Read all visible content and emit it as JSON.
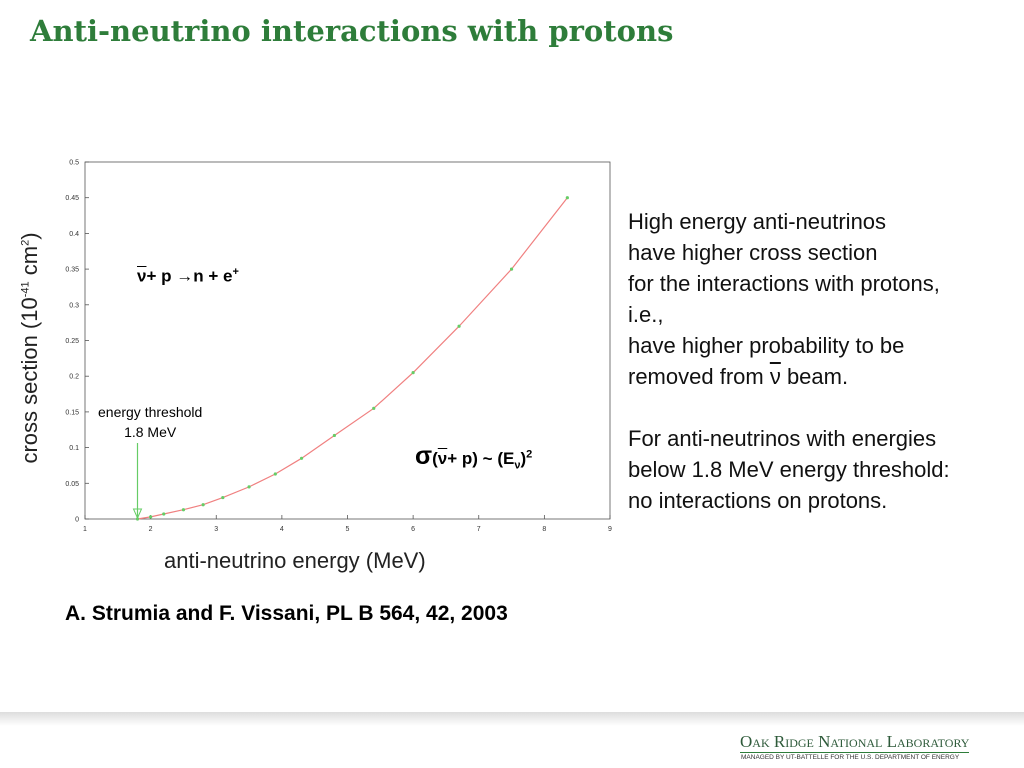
{
  "title": "Anti-neutrino interactions with protons",
  "chart_data": {
    "type": "line",
    "xlabel": "anti-neutrino energy (MeV)",
    "ylabel": {
      "before": "cross section (10",
      "sup1": "-41",
      "middle": " cm",
      "sup2": "2",
      "after": ")"
    },
    "x": [
      1.8,
      2.0,
      2.2,
      2.5,
      2.8,
      3.1,
      3.5,
      3.9,
      4.3,
      4.8,
      5.4,
      6.0,
      6.7,
      7.5,
      8.35
    ],
    "series": [
      {
        "values": [
          0,
          0.003,
          0.007,
          0.013,
          0.02,
          0.03,
          0.045,
          0.063,
          0.085,
          0.117,
          0.155,
          0.205,
          0.27,
          0.35,
          0.45
        ],
        "color": "#f08080",
        "marker_color": "#66cc66"
      }
    ],
    "xlim": [
      1,
      9
    ],
    "xticks": [
      1,
      2,
      3,
      4,
      5,
      6,
      7,
      8,
      9
    ],
    "ylim": [
      0,
      0.5
    ],
    "yticks": [
      0,
      0.05,
      0.1,
      0.15,
      0.2,
      0.25,
      0.3,
      0.35,
      0.4,
      0.45,
      0.5
    ],
    "grid": false,
    "threshold": {
      "x": 1.8,
      "text": [
        "energy threshold",
        "1.8 MeV"
      ],
      "color": "#66cc66"
    },
    "reaction": {
      "nu": "ν",
      "rest": "+ p →n + e",
      "sup": "+"
    },
    "formula": {
      "sigma": "σ",
      "open": "(",
      "nu": "ν",
      "mid": "+ p) ~ (E",
      "sub": "ν",
      "close": ")",
      "sup": "2"
    }
  },
  "reference": "A. Strumia and F. Vissani, PL B 564, 42, 2003",
  "body": {
    "lines": [
      "High energy anti-neutrinos",
      "have higher cross section",
      "for the interactions with protons,",
      "i.e.,",
      "have higher probability to be"
    ],
    "last_line": {
      "before": "removed from ",
      "nu": "ν",
      "after": " beam."
    },
    "paragraph2": [
      "For  anti-neutrinos with energies",
      "below 1.8 MeV energy threshold:",
      "no interactions on protons."
    ]
  },
  "footer": {
    "lab": "Oak Ridge National Laboratory",
    "managed": "MANAGED BY UT-BATTELLE FOR THE U.S. DEPARTMENT OF ENERGY"
  }
}
